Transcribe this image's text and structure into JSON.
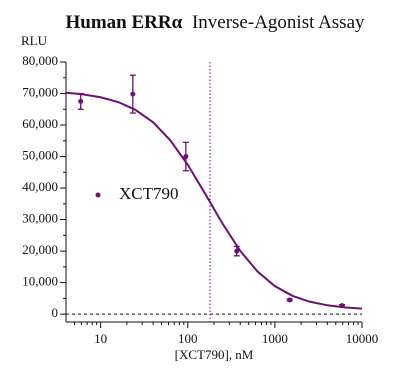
{
  "chart_data": {
    "type": "dose-response",
    "title": "Human ERRα",
    "subtitle": "Inverse-Agonist Assay",
    "y_label": "RLU",
    "x_label": "[XCT790], nM",
    "log_x": true,
    "legend": "center-left",
    "color": "#6b1270",
    "xlim": [
      4,
      10000
    ],
    "xticks": [
      10,
      100,
      1000,
      10000
    ],
    "xminorticks": [
      5,
      6,
      7,
      8,
      9,
      20,
      30,
      40,
      50,
      60,
      70,
      80,
      90,
      200,
      300,
      400,
      500,
      600,
      700,
      800,
      900,
      2000,
      3000,
      4000,
      5000,
      6000,
      7000,
      8000,
      9000
    ],
    "ylim": [
      -2500,
      80000
    ],
    "yticks": [
      0,
      {
        "value": 10000,
        "label": "10,000"
      },
      {
        "value": 20000,
        "label": "20,000"
      },
      {
        "value": 30000,
        "label": "30,000"
      },
      {
        "value": 40000,
        "label": "40,000"
      },
      {
        "value": 50000,
        "label": "50,000"
      },
      {
        "value": 60000,
        "label": "60,000"
      },
      {
        "value": 70000,
        "label": "70,000"
      },
      {
        "value": 80000,
        "label": "80,000"
      }
    ],
    "yminorticks": [
      5000,
      15000,
      25000,
      35000,
      45000,
      55000,
      65000,
      75000
    ],
    "baseline": 0,
    "ic50_line": 180,
    "series": [
      {
        "name": "XCT790",
        "color": "#6b1270",
        "x": [
          5.9,
          23.4,
          95,
          365,
          1480,
          5900
        ],
        "values": [
          67500,
          69800,
          50000,
          20000,
          4500,
          2700
        ],
        "errors": [
          2500,
          6000,
          4500,
          1500,
          300,
          300
        ]
      }
    ],
    "fit": {
      "x": [
        4,
        6,
        10,
        16,
        25,
        40,
        63,
        100,
        160,
        250,
        400,
        630,
        1000,
        1600,
        2500,
        4000,
        6300,
        10000
      ],
      "values": [
        70250,
        69800,
        68820,
        67260,
        64840,
        60860,
        55160,
        47390,
        37980,
        28750,
        20080,
        13550,
        8870,
        5780,
        3960,
        2800,
        2130,
        1740
      ]
    }
  }
}
